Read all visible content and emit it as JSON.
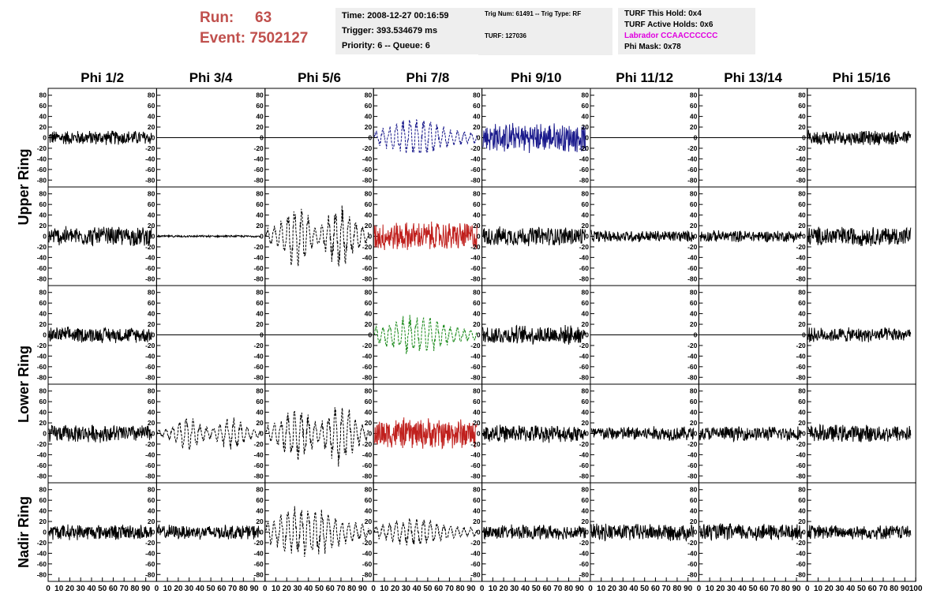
{
  "header": {
    "run_label": "Run:",
    "run_value": "63",
    "event_label": "Event:",
    "event_value": "7502127",
    "time": "Time: 2008-12-27 00:16:59",
    "trigger": "Trigger: 393.534679 ms",
    "priority": "Priority: 6 -- Queue: 6",
    "trig_num": "Trig Num: 61491 -- Trig Type: RF",
    "turf": "TURF: 127036",
    "turf_this_hold": "TURF This Hold: 0x4",
    "turf_active_holds": "TURF Active Holds: 0x6",
    "labrador": "Labrador CCAACCCCCC",
    "phi_mask": "Phi Mask: 0x78",
    "labrador_color": "#e000e0",
    "run_color": "#c0504d"
  },
  "chart_data": {
    "type": "line",
    "grid": false,
    "columns": [
      "Phi 1/2",
      "Phi 3/4",
      "Phi 5/6",
      "Phi 7/8",
      "Phi 9/10",
      "Phi 11/12",
      "Phi 13/14",
      "Phi 15/16"
    ],
    "row_labels": [
      {
        "text": "Upper Ring",
        "rows": [
          0,
          1
        ]
      },
      {
        "text": "Lower Ring",
        "rows": [
          2,
          3
        ]
      },
      {
        "text": "Nadir Ring",
        "rows": [
          4
        ]
      }
    ],
    "xlim": [
      0,
      100
    ],
    "ylim": [
      -90,
      90
    ],
    "yticks": [
      -80,
      -60,
      -40,
      -20,
      0,
      20,
      40,
      60,
      80
    ],
    "xticks": [
      0,
      10,
      20,
      30,
      40,
      50,
      60,
      70,
      80,
      90,
      100
    ],
    "x_samples": [
      0,
      96
    ],
    "colors": {
      "black": "#000000",
      "blue": "#1a1a8c",
      "red": "#c0201d",
      "green": "#1e8c1e"
    },
    "panels": [
      [
        {
          "amp": 15,
          "style": "solid",
          "color": "black"
        },
        {
          "amp": 0,
          "style": "flat",
          "color": "black"
        },
        {
          "amp": 0,
          "style": "flat",
          "color": "black"
        },
        {
          "amp": 28,
          "style": "dashed",
          "color": "blue",
          "envelope": "burst"
        },
        {
          "amp": 30,
          "style": "solid",
          "color": "blue"
        },
        {
          "amp": 0,
          "style": "flat",
          "color": "black"
        },
        {
          "amp": 0,
          "style": "flat",
          "color": "black"
        },
        {
          "amp": 15,
          "style": "solid",
          "color": "black"
        }
      ],
      [
        {
          "amp": 20,
          "style": "solid",
          "color": "black"
        },
        {
          "amp": 2,
          "style": "solid",
          "color": "black"
        },
        {
          "amp": 48,
          "style": "dashed",
          "color": "black",
          "envelope": "double"
        },
        {
          "amp": 30,
          "style": "solid",
          "color": "red"
        },
        {
          "amp": 20,
          "style": "solid",
          "color": "black"
        },
        {
          "amp": 12,
          "style": "solid",
          "color": "black"
        },
        {
          "amp": 12,
          "style": "solid",
          "color": "black"
        },
        {
          "amp": 20,
          "style": "solid",
          "color": "black"
        }
      ],
      [
        {
          "amp": 16,
          "style": "solid",
          "color": "black"
        },
        {
          "amp": 0,
          "style": "flat",
          "color": "black"
        },
        {
          "amp": 0,
          "style": "flat",
          "color": "black"
        },
        {
          "amp": 30,
          "style": "dashed",
          "color": "green",
          "envelope": "burst"
        },
        {
          "amp": 20,
          "style": "solid",
          "color": "black"
        },
        {
          "amp": 0,
          "style": "flat",
          "color": "black"
        },
        {
          "amp": 0,
          "style": "flat",
          "color": "black"
        },
        {
          "amp": 15,
          "style": "solid",
          "color": "black"
        }
      ],
      [
        {
          "amp": 18,
          "style": "solid",
          "color": "black"
        },
        {
          "amp": 25,
          "style": "dashed",
          "color": "black",
          "envelope": "double"
        },
        {
          "amp": 50,
          "style": "dashed",
          "color": "black",
          "envelope": "double"
        },
        {
          "amp": 32,
          "style": "solid",
          "color": "red"
        },
        {
          "amp": 18,
          "style": "solid",
          "color": "black"
        },
        {
          "amp": 15,
          "style": "solid",
          "color": "black"
        },
        {
          "amp": 15,
          "style": "solid",
          "color": "black"
        },
        {
          "amp": 18,
          "style": "solid",
          "color": "black"
        }
      ],
      [
        {
          "amp": 16,
          "style": "solid",
          "color": "black"
        },
        {
          "amp": 15,
          "style": "solid",
          "color": "black"
        },
        {
          "amp": 40,
          "style": "dashed",
          "color": "black",
          "envelope": "burst"
        },
        {
          "amp": 22,
          "style": "dashed",
          "color": "black",
          "envelope": "burst"
        },
        {
          "amp": 15,
          "style": "solid",
          "color": "black"
        },
        {
          "amp": 18,
          "style": "solid",
          "color": "black"
        },
        {
          "amp": 18,
          "style": "solid",
          "color": "black"
        },
        {
          "amp": 15,
          "style": "solid",
          "color": "black"
        }
      ]
    ]
  }
}
